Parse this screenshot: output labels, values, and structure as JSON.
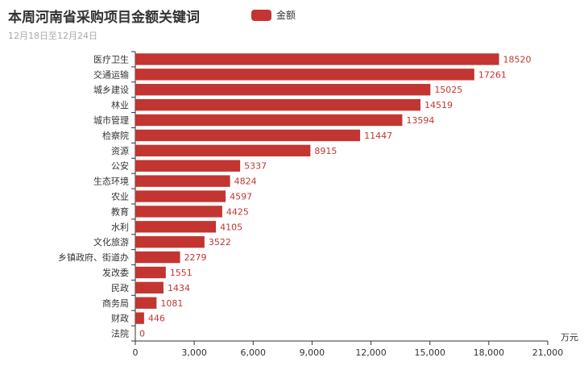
{
  "colors": {
    "bar": "#c23531",
    "axis": "#333333",
    "text": "#333333",
    "subtitle": "#aaaaaa"
  },
  "chart_data": {
    "type": "bar",
    "orientation": "horizontal",
    "title": "本周河南省采购项目金额关键词",
    "subtitle": "12月18日至12月24日",
    "legend": {
      "entries": [
        "金额"
      ],
      "position": "top-center"
    },
    "x_unit_label": "万元",
    "xlim": [
      0,
      21000
    ],
    "x_ticks": [
      0,
      3000,
      6000,
      9000,
      12000,
      15000,
      18000,
      21000
    ],
    "x_tick_labels": [
      "0",
      "3,000",
      "6,000",
      "9,000",
      "12,000",
      "15,000",
      "18,000",
      "21,000"
    ],
    "grid": false,
    "categories": [
      "医疗卫生",
      "交通运输",
      "城乡建设",
      "林业",
      "城市管理",
      "检察院",
      "资源",
      "公安",
      "生态环境",
      "农业",
      "教育",
      "水利",
      "文化旅游",
      "乡镇政府、街道办",
      "发改委",
      "民政",
      "商务局",
      "财政",
      "法院"
    ],
    "series": [
      {
        "name": "金额",
        "values": [
          18520,
          17261,
          15025,
          14519,
          13594,
          11447,
          8915,
          5337,
          4824,
          4597,
          4425,
          4105,
          3522,
          2279,
          1551,
          1434,
          1081,
          446,
          0
        ]
      }
    ]
  }
}
